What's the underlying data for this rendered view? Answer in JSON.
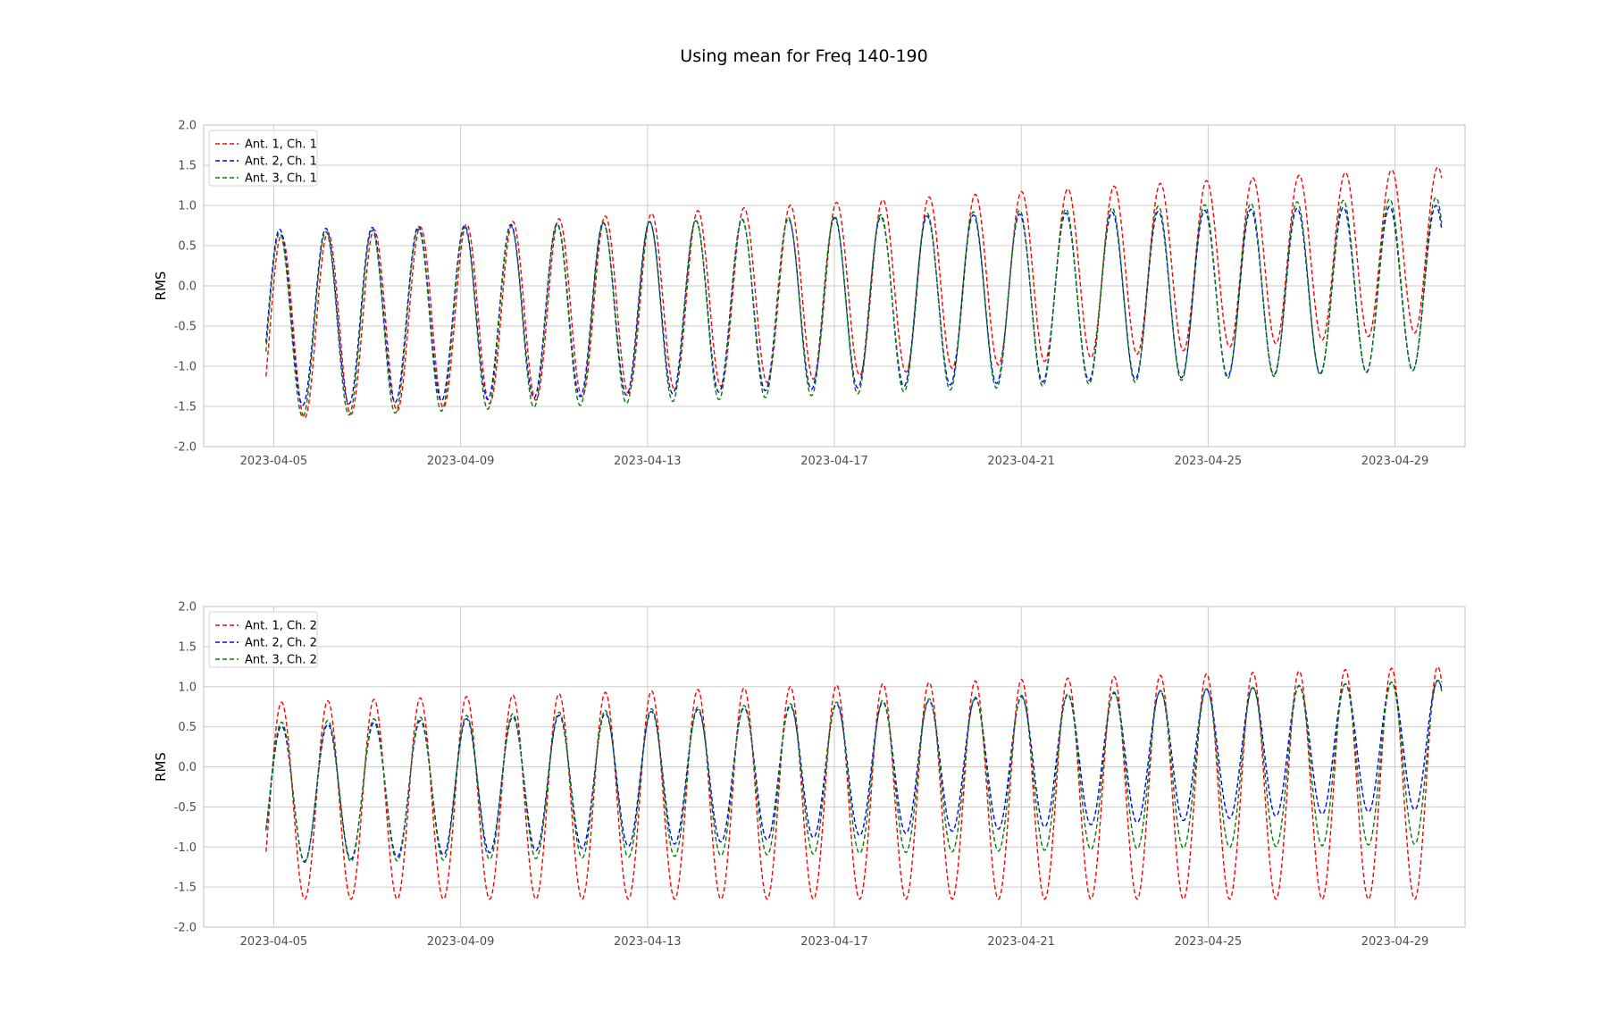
{
  "figure": {
    "title": "Using mean for Freq 140-190"
  },
  "chart_data": [
    {
      "type": "line",
      "ylabel": "RMS",
      "xlim": [
        "2023-04-03 12:00",
        "2023-04-30 12:00"
      ],
      "ylim": [
        -2.0,
        2.0
      ],
      "yticks": [
        "-2.0",
        "-1.5",
        "-1.0",
        "-0.5",
        "0.0",
        "0.5",
        "1.0",
        "1.5",
        "2.0"
      ],
      "xticks": [
        "2023-04-05",
        "2023-04-09",
        "2023-04-13",
        "2023-04-17",
        "2023-04-21",
        "2023-04-25",
        "2023-04-29"
      ],
      "grid": true,
      "legend_position": "top-left",
      "x_start": "2023-04-04 20:00",
      "x_end": "2023-04-30 00:00",
      "period_days": 0.99,
      "series": [
        {
          "name": "Ant. 1, Ch. 1",
          "color": "#ff0000",
          "first_peak": "2023-04-05 04:00",
          "peak": [
            0.62,
            1.48
          ],
          "trough": [
            -1.68,
            -0.56
          ]
        },
        {
          "name": "Ant. 2, Ch. 1",
          "color": "#0000ff",
          "first_peak": "2023-04-05 03:00",
          "peak": [
            0.7,
            1.0
          ],
          "trough": [
            -1.5,
            -1.04
          ]
        },
        {
          "name": "Ant. 3, Ch. 1",
          "color": "#008000",
          "first_peak": "2023-04-05 03:00",
          "peak": [
            0.65,
            1.1
          ],
          "trough": [
            -1.65,
            -1.04
          ]
        }
      ]
    },
    {
      "type": "line",
      "ylabel": "RMS",
      "xlim": [
        "2023-04-03 12:00",
        "2023-04-30 12:00"
      ],
      "ylim": [
        -2.0,
        2.0
      ],
      "yticks": [
        "-2.0",
        "-1.5",
        "-1.0",
        "-0.5",
        "0.0",
        "0.5",
        "1.0",
        "1.5",
        "2.0"
      ],
      "xticks": [
        "2023-04-05",
        "2023-04-09",
        "2023-04-13",
        "2023-04-17",
        "2023-04-21",
        "2023-04-25",
        "2023-04-29"
      ],
      "grid": true,
      "legend_position": "top-left",
      "x_start": "2023-04-04 20:00",
      "x_end": "2023-04-30 00:00",
      "period_days": 0.99,
      "series": [
        {
          "name": "Ant. 1, Ch. 2",
          "color": "#ff0000",
          "first_peak": "2023-04-05 04:00",
          "peak": [
            0.8,
            1.25
          ],
          "trough": [
            -1.65,
            -1.65
          ]
        },
        {
          "name": "Ant. 2, Ch. 2",
          "color": "#0000ff",
          "first_peak": "2023-04-05 04:00",
          "peak": [
            0.5,
            1.08
          ],
          "trough": [
            -1.2,
            -0.52
          ]
        },
        {
          "name": "Ant. 3, Ch. 2",
          "color": "#008000",
          "first_peak": "2023-04-05 04:00",
          "peak": [
            0.55,
            1.08
          ],
          "trough": [
            -1.2,
            -0.96
          ]
        }
      ]
    }
  ]
}
